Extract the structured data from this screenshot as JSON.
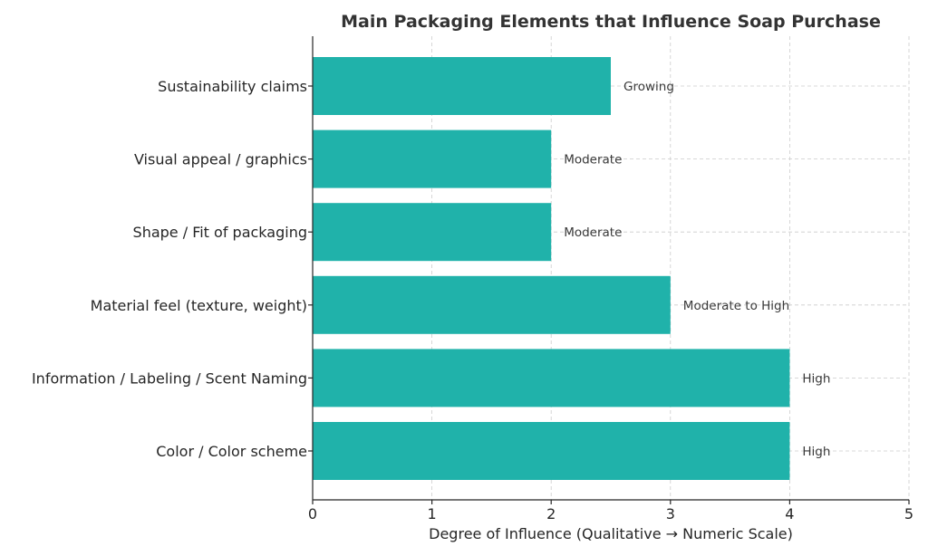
{
  "chart_data": {
    "type": "bar",
    "orientation": "horizontal",
    "title": "Main Packaging Elements that Influence Soap Purchase",
    "xlabel": "Degree of Influence (Qualitative → Numeric Scale)",
    "ylabel": "",
    "xlim": [
      0,
      5
    ],
    "xticks": [
      "0",
      "1",
      "2",
      "3",
      "4",
      "5"
    ],
    "grid": true,
    "bar_color": "#20b2aa",
    "categories": [
      "Sustainability claims",
      "Visual appeal / graphics",
      "Shape / Fit of packaging",
      "Material feel (texture, weight)",
      "Information / Labeling / Scent Naming",
      "Color / Color scheme"
    ],
    "values": [
      2.5,
      2,
      2,
      3,
      4,
      4
    ],
    "data_labels": [
      "Growing",
      "Moderate",
      "Moderate",
      "Moderate to High",
      "High",
      "High"
    ]
  }
}
